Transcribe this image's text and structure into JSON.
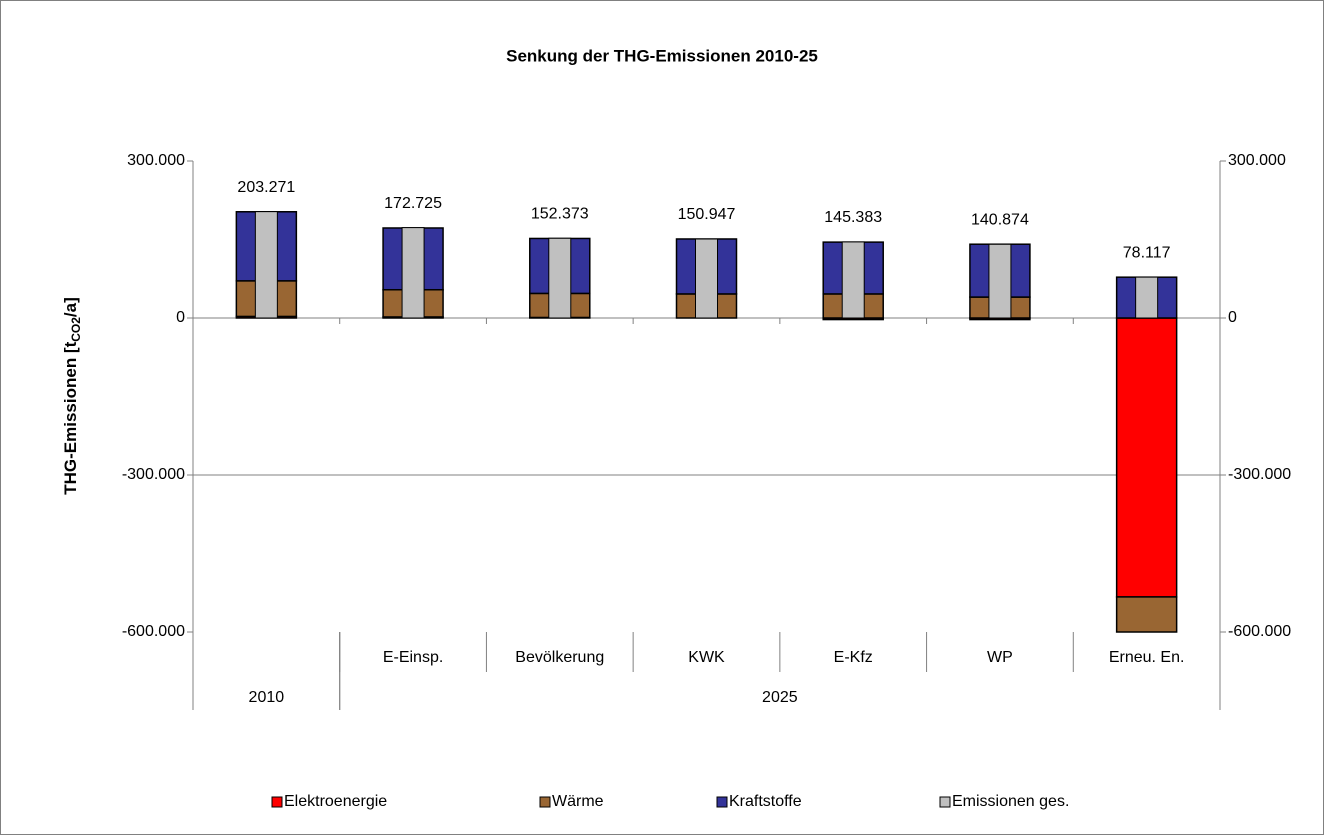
{
  "chart_data": {
    "type": "bar",
    "title": "Senkung der THG-Emissionen 2010-25",
    "y_label": [
      "THG-Emissionen [t",
      "CO2",
      "/a]"
    ],
    "categories": [
      null,
      "E-Einsp.",
      "Bevölkerung",
      "KWK",
      "E-Kfz",
      "WP",
      "Erneu. En."
    ],
    "groups": [
      {
        "label": "2010",
        "count": 1
      },
      {
        "label": "2025",
        "count": 6
      }
    ],
    "series": [
      {
        "name": "Elektroenergie",
        "color": "#ff0000",
        "stacked": true,
        "values": [
          3000,
          2000,
          1000,
          0,
          -3000,
          -3000,
          -533000
        ]
      },
      {
        "name": "Wärme",
        "color": "#996633",
        "stacked": true,
        "values": [
          68000,
          52000,
          46000,
          46000,
          46000,
          40000,
          -67000
        ]
      },
      {
        "name": "Kraftstoffe",
        "color": "#333399",
        "stacked": true,
        "values": [
          132000,
          118000,
          105000,
          105000,
          99000,
          101000,
          78000
        ]
      },
      {
        "name": "Emissionen ges.",
        "color": "#c0c0c0",
        "stacked": false,
        "values": [
          203271,
          172725,
          152373,
          150947,
          145383,
          140874,
          78117
        ],
        "value_labels": [
          "203.271",
          "172.725",
          "152.373",
          "150.947",
          "145.383",
          "140.874",
          "78.117"
        ]
      }
    ],
    "ylim": [
      -600000,
      300000
    ],
    "yticks": [
      {
        "value": 300000,
        "label": "300.000"
      },
      0,
      {
        "value": -300000,
        "label": "-300.000"
      },
      {
        "value": -600000,
        "label": "-600.000"
      }
    ],
    "y2lim": [
      -600000,
      300000
    ],
    "y2ticks": [
      {
        "value": 300000,
        "label": "300.000"
      },
      0,
      {
        "value": -300000,
        "label": "-300.000"
      },
      {
        "value": -600000,
        "label": "-600.000"
      }
    ],
    "grid": true,
    "legend": "bottom"
  }
}
